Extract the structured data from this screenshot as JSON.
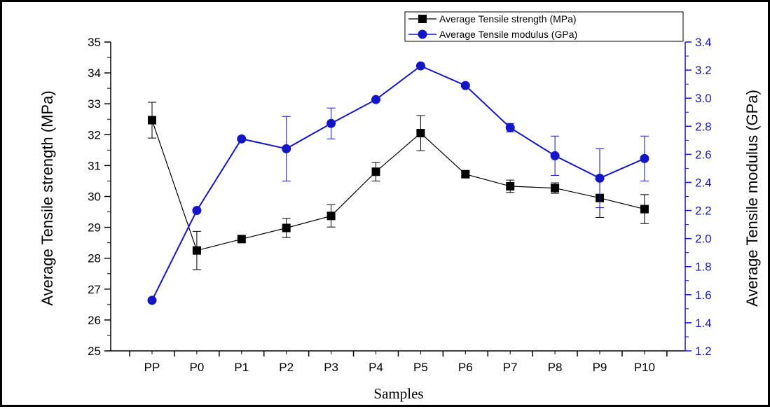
{
  "chart_data": {
    "type": "line",
    "xlabel": "Samples",
    "categories": [
      "PP",
      "P0",
      "P1",
      "P2",
      "P3",
      "P4",
      "P5",
      "P6",
      "P7",
      "P8",
      "P9",
      "P10"
    ],
    "y_left": {
      "label": "Average Tensile strength (MPa)",
      "lim": [
        25,
        35
      ],
      "ticks": [
        25,
        26,
        27,
        28,
        29,
        30,
        31,
        32,
        33,
        34,
        35
      ]
    },
    "y_right": {
      "label": "Average Tensile modulus (GPa)",
      "lim": [
        1.2,
        3.4
      ],
      "ticks": [
        "1.2",
        "1.4",
        "1.6",
        "1.8",
        "2.0",
        "2.2",
        "2.4",
        "2.6",
        "2.8",
        "3.0",
        "3.2",
        "3.4"
      ]
    },
    "series": [
      {
        "name": "Average Tensile strength (MPa)",
        "axis": "left",
        "color": "#000000",
        "marker": "square",
        "values": [
          32.47,
          28.25,
          28.62,
          28.98,
          29.37,
          30.8,
          32.05,
          30.72,
          30.33,
          30.27,
          29.95,
          29.59
        ],
        "errors": [
          0.58,
          0.62,
          0.0,
          0.31,
          0.36,
          0.3,
          0.57,
          0.0,
          0.2,
          0.17,
          0.63,
          0.47
        ]
      },
      {
        "name": "Average Tensile modulus (GPa)",
        "axis": "right",
        "color": "#1515c8",
        "marker": "circle",
        "values": [
          1.56,
          2.2,
          2.71,
          2.64,
          2.82,
          2.99,
          3.23,
          3.09,
          2.79,
          2.59,
          2.43,
          2.57
        ],
        "errors": [
          0.0,
          0.0,
          0.0,
          0.23,
          0.11,
          0.0,
          0.0,
          0.0,
          0.03,
          0.14,
          0.21,
          0.16
        ]
      }
    ],
    "legend": "top-right",
    "grid": false
  }
}
